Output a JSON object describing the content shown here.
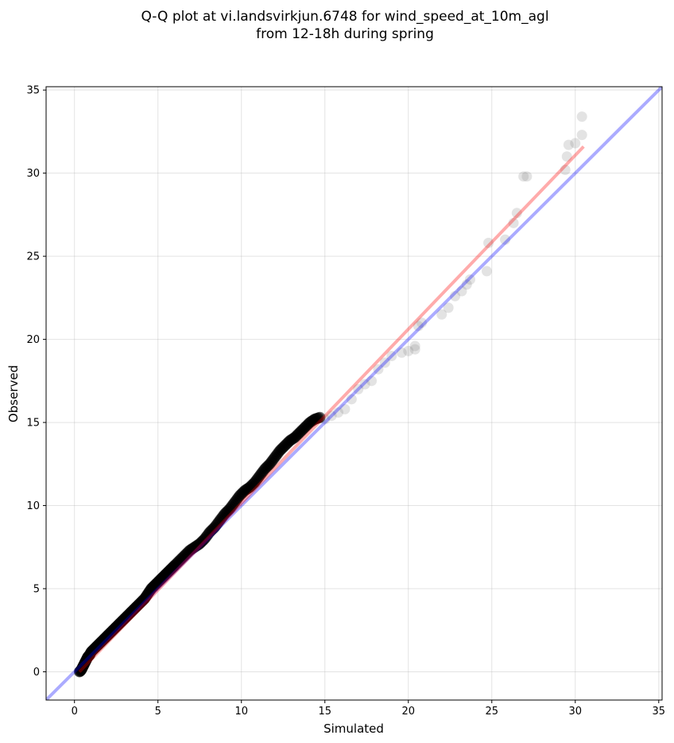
{
  "chart_data": {
    "type": "scatter",
    "title": [
      "Q-Q plot at vi.landsvirkjun.6748 for wind_speed_at_10m_agl",
      "from 12-18h during spring"
    ],
    "xlabel": "Simulated",
    "ylabel": "Observed",
    "xlim": [
      -1.7,
      35.2
    ],
    "ylim": [
      -1.7,
      35.2
    ],
    "xticks": [
      "0",
      "5",
      "10",
      "15",
      "20",
      "25",
      "30",
      "35"
    ],
    "yticks": [
      "0",
      "5",
      "10",
      "15",
      "20",
      "25",
      "30",
      "35"
    ],
    "grid": true,
    "legend": "none",
    "series": [
      {
        "role": "quantile points (dense)",
        "color": "#000000",
        "x": [
          0.3,
          0.4,
          0.5,
          0.6,
          0.7,
          0.8,
          0.9,
          1.0,
          1.2,
          1.4,
          1.6,
          1.8,
          2.0,
          2.2,
          2.4,
          2.6,
          2.8,
          3.0,
          3.2,
          3.4,
          3.6,
          3.8,
          4.0,
          4.2,
          4.4,
          4.6,
          4.8,
          5.0,
          5.2,
          5.4,
          5.6,
          5.8,
          6.0,
          6.3,
          6.6,
          6.9,
          7.2,
          7.5,
          7.8,
          8.1,
          8.4,
          8.7,
          9.0,
          9.3,
          9.6,
          9.9,
          10.2,
          10.5,
          10.8,
          11.1,
          11.4,
          11.7,
          12.0,
          12.3,
          12.6,
          12.9,
          13.2,
          13.5,
          13.8,
          14.1,
          14.4,
          14.7
        ],
        "y": [
          0.0,
          0.1,
          0.3,
          0.5,
          0.7,
          0.9,
          1.0,
          1.2,
          1.4,
          1.6,
          1.8,
          2.0,
          2.2,
          2.4,
          2.6,
          2.8,
          3.0,
          3.2,
          3.4,
          3.6,
          3.8,
          4.0,
          4.2,
          4.4,
          4.7,
          5.0,
          5.2,
          5.4,
          5.6,
          5.8,
          6.0,
          6.2,
          6.4,
          6.7,
          7.0,
          7.3,
          7.5,
          7.7,
          8.0,
          8.4,
          8.7,
          9.1,
          9.5,
          9.8,
          10.2,
          10.6,
          10.9,
          11.1,
          11.4,
          11.8,
          12.2,
          12.5,
          12.9,
          13.3,
          13.6,
          13.9,
          14.1,
          14.4,
          14.7,
          15.0,
          15.2,
          15.3
        ]
      },
      {
        "role": "quantile points (tail)",
        "color": "#808080",
        "x": [
          15.0,
          15.4,
          15.8,
          16.2,
          16.6,
          17.0,
          17.4,
          17.8,
          18.2,
          18.6,
          19.0,
          19.6,
          20.0,
          20.4,
          20.4,
          20.6,
          20.8,
          22.0,
          22.4,
          22.8,
          23.2,
          23.5,
          23.7,
          24.7,
          24.8,
          25.8,
          26.3,
          26.5,
          26.9,
          27.1,
          29.4,
          29.5,
          29.6,
          30.0,
          30.4,
          30.4
        ],
        "y": [
          15.2,
          15.4,
          15.6,
          15.8,
          16.4,
          17.0,
          17.3,
          17.5,
          18.2,
          18.6,
          19.0,
          19.2,
          19.3,
          19.4,
          19.6,
          20.8,
          21.0,
          21.5,
          21.9,
          22.6,
          22.9,
          23.3,
          23.6,
          24.1,
          25.8,
          26.0,
          27.0,
          27.6,
          29.8,
          29.8,
          30.2,
          31.0,
          31.7,
          31.8,
          32.3,
          33.4
        ]
      },
      {
        "role": "1:1 reference line",
        "color": "#0000ff",
        "x": [
          -1.7,
          35.2
        ],
        "y": [
          -1.7,
          35.2
        ]
      },
      {
        "role": "fitted line",
        "color": "#ff0000",
        "x": [
          0.3,
          30.5
        ],
        "y": [
          0.0,
          31.6
        ]
      }
    ]
  }
}
